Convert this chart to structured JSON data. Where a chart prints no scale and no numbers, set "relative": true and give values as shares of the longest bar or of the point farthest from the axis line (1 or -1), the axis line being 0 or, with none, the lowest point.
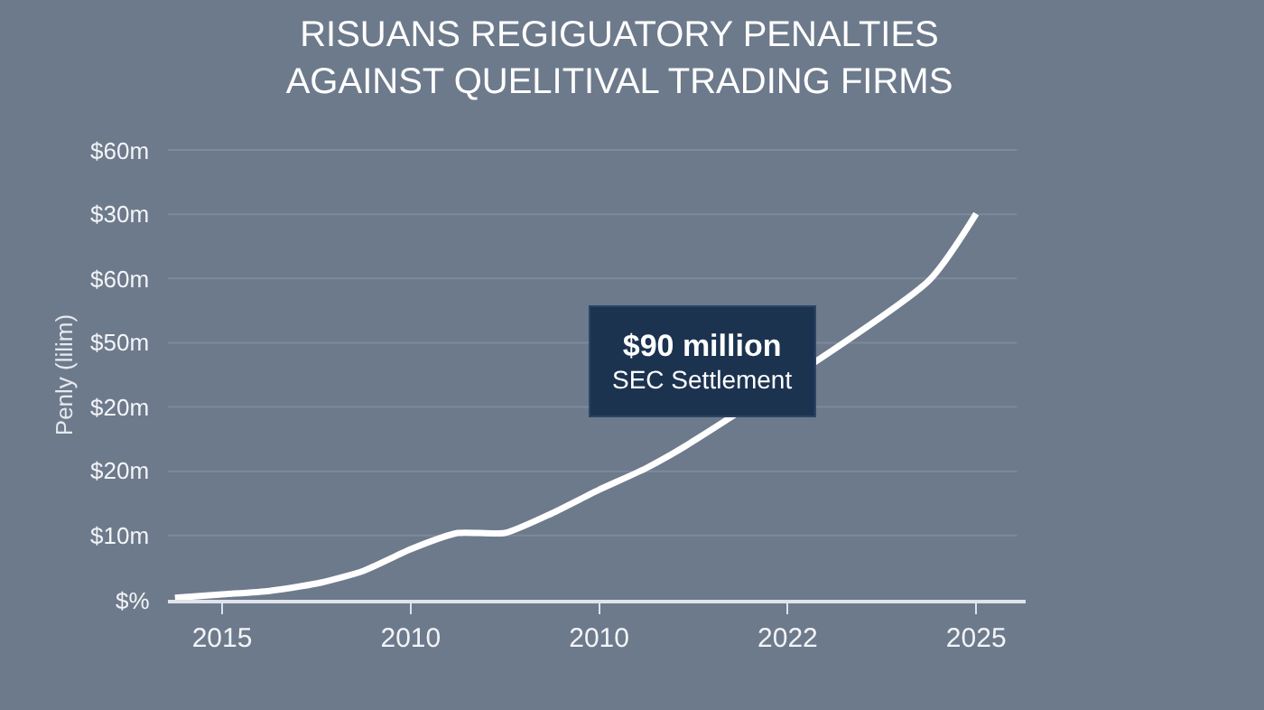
{
  "chart_data": {
    "type": "line",
    "title": "RISUANS REGIGUATORY PENALTIES\nAGAINST QUELITIVAL TRADING FIRMS",
    "ylabel": "Penly (lilim)",
    "relative": true,
    "categories": [
      null,
      "2015",
      null,
      null,
      null,
      "2010",
      null,
      null,
      null,
      "2010",
      null,
      null,
      null,
      "2022",
      null,
      null,
      null,
      "2025",
      null
    ],
    "values": [
      0.005,
      0.014,
      0.023,
      0.042,
      0.075,
      0.131,
      0.173,
      0.173,
      0.224,
      0.285,
      0.341,
      0.411,
      null,
      null,
      null,
      null,
      0.827,
      1.0,
      null
    ],
    "color": "#ffffff",
    "grid": "y",
    "line_style": "solid",
    "annotations": [
      "$90 million\nSEC Settlement",
      "$60m",
      "$30m",
      "$60m",
      "$50m",
      "$20m",
      "$20m",
      "$10m",
      "$%"
    ]
  }
}
